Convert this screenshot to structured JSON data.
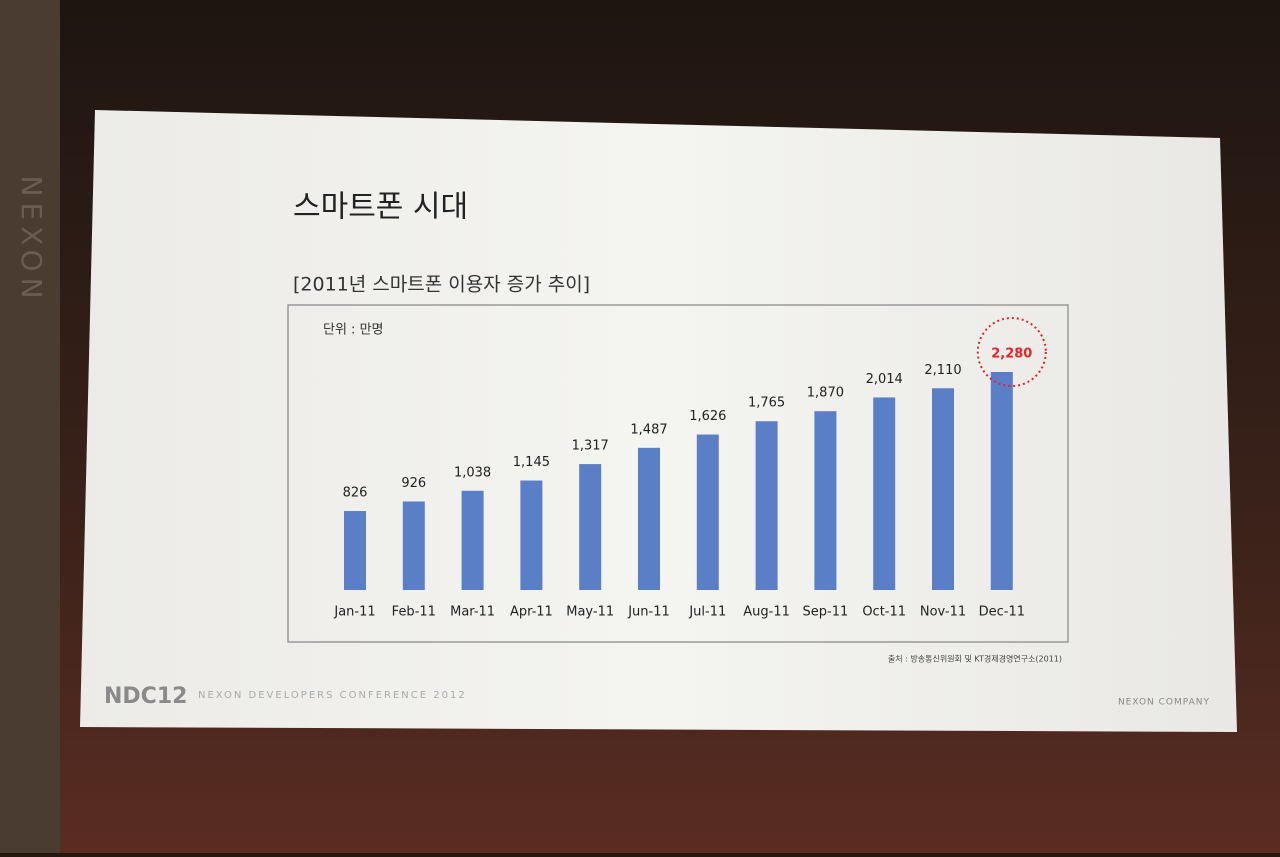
{
  "chart_data": {
    "type": "bar",
    "title": "스마트폰 시대",
    "subtitle": "[2011년 스마트폰 이용자 증가 추이]",
    "unit_note": "단위 : 만명",
    "source": "출처 : 방송통신위원회 및 KT경제경영연구소(2011)",
    "categories": [
      "Jan-11",
      "Feb-11",
      "Mar-11",
      "Apr-11",
      "May-11",
      "Jun-11",
      "Jul-11",
      "Aug-11",
      "Sep-11",
      "Oct-11",
      "Nov-11",
      "Dec-11"
    ],
    "values": [
      826,
      926,
      1038,
      1145,
      1317,
      1487,
      1626,
      1765,
      1870,
      2014,
      2110,
      2280
    ],
    "value_labels": [
      "826",
      "926",
      "1,038",
      "1,145",
      "1,317",
      "1,487",
      "1,626",
      "1,765",
      "1,870",
      "2,014",
      "2,110",
      "2,280"
    ],
    "color": "#5b7fc6",
    "highlight_color": "#e0262a"
  },
  "slide": {
    "logo": "NDC12",
    "conference": "NEXON DEVELOPERS CONFERENCE 2012",
    "company": "NEXON COMPANY",
    "side_brand": "NEXON"
  }
}
